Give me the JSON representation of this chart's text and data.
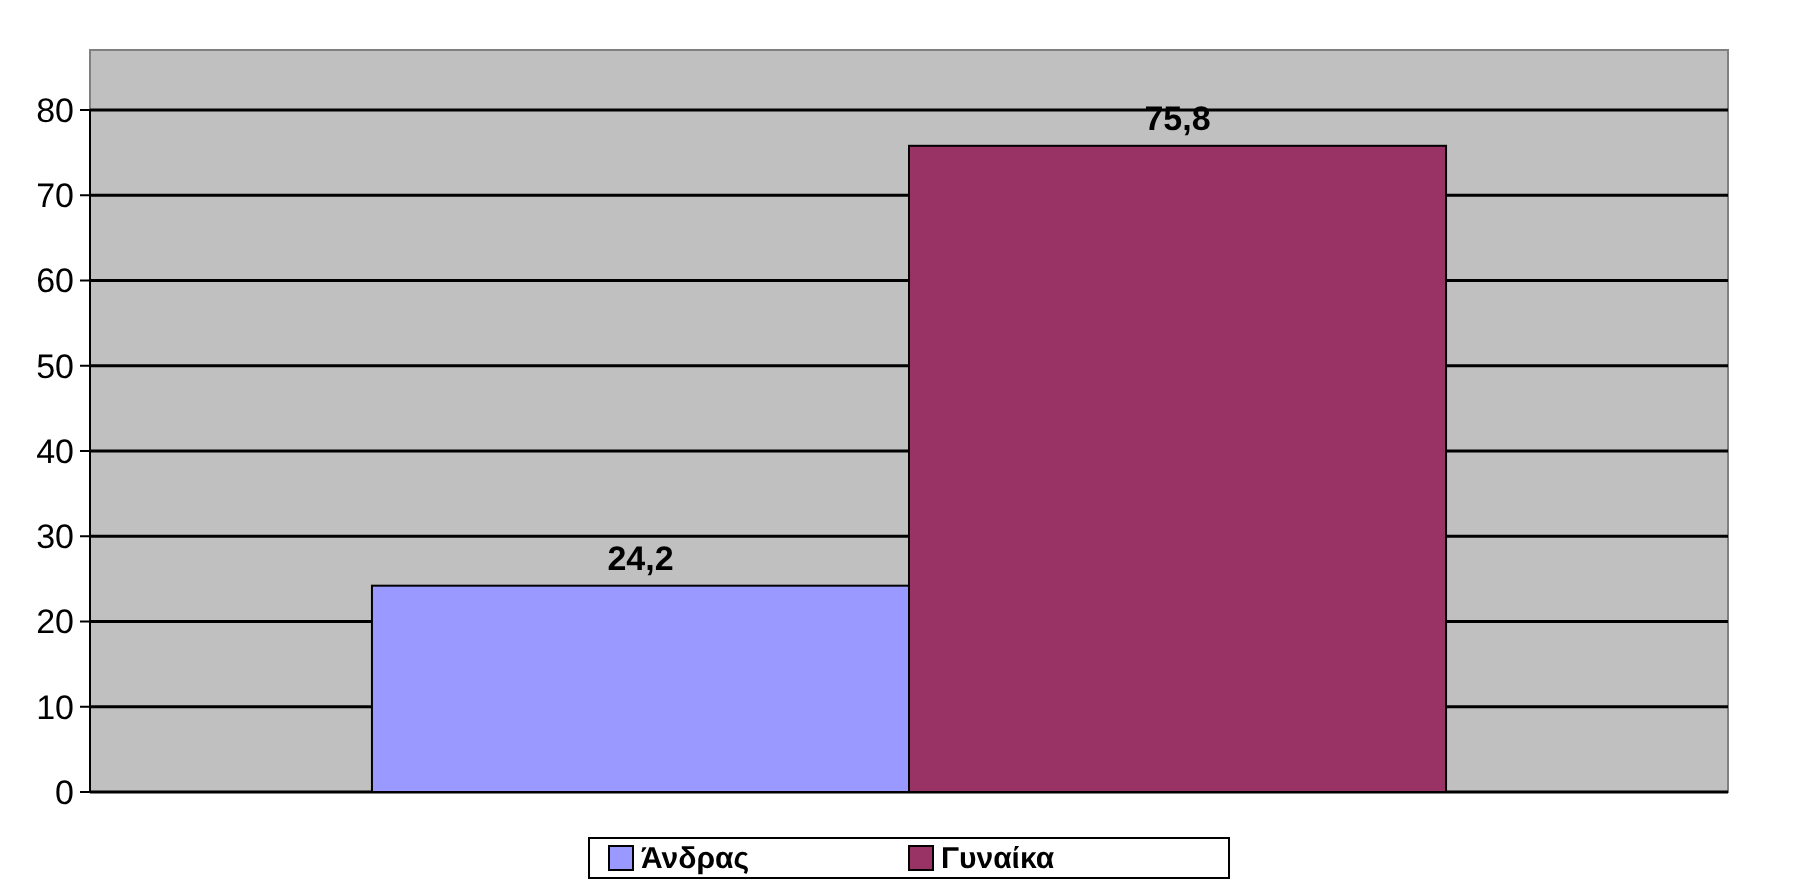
{
  "chart_data": {
    "type": "bar",
    "categories": [
      null
    ],
    "series": [
      {
        "name": "Άνδρας",
        "color": "#9999ff",
        "values": [
          24.2
        ],
        "value_labels": [
          "24,2"
        ]
      },
      {
        "name": "Γυναίκα",
        "color": "#993366",
        "values": [
          75.8
        ],
        "value_labels": [
          "75,8"
        ]
      }
    ],
    "ylim": [
      0,
      80
    ],
    "yticks": [
      0,
      10,
      20,
      30,
      40,
      50,
      60,
      70,
      80
    ],
    "grid": "y",
    "legend": "bottom"
  }
}
